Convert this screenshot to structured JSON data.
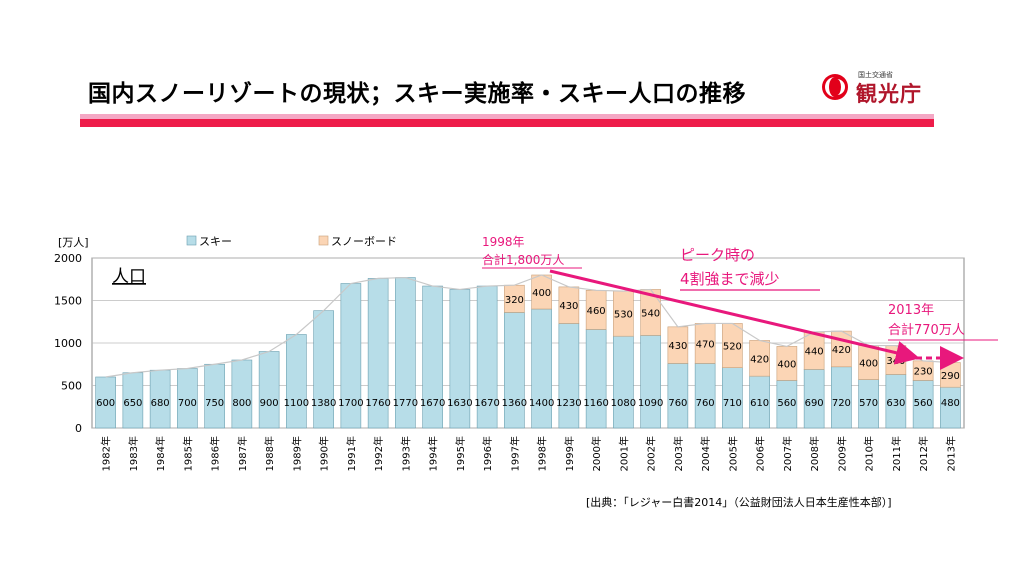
{
  "page": {
    "title": "国内スノーリゾートの現状；スキー実施率・スキー人口の推移",
    "agency_small": "国土交通省",
    "agency_name": "観光庁",
    "source": "[出典：「レジャー白書2014」（公益財団法人日本生産性本部）]"
  },
  "colors": {
    "ski": "#b7dde8",
    "snowboard": "#fbd5b5",
    "annotation": "#e8187c",
    "line": "#c8c8c8",
    "band_pink": "#f4a7c4",
    "band_red": "#ee1c4a"
  },
  "chart_data": {
    "type": "bar",
    "stacked": true,
    "inner_title": "人口",
    "ylabel": "[万人]",
    "ylim": [
      0,
      2000
    ],
    "yticks": [
      0,
      500,
      1000,
      1500,
      2000
    ],
    "legend": [
      "スキー",
      "スノーボード"
    ],
    "categories": [
      "1982年",
      "1983年",
      "1984年",
      "1985年",
      "1986年",
      "1987年",
      "1988年",
      "1989年",
      "1990年",
      "1991年",
      "1992年",
      "1993年",
      "1994年",
      "1995年",
      "1996年",
      "1997年",
      "1998年",
      "1999年",
      "2000年",
      "2001年",
      "2002年",
      "2003年",
      "2004年",
      "2005年",
      "2006年",
      "2007年",
      "2008年",
      "2009年",
      "2010年",
      "2011年",
      "2012年",
      "2013年"
    ],
    "series": [
      {
        "name": "スキー",
        "values": [
          600,
          650,
          680,
          700,
          750,
          800,
          900,
          1100,
          1380,
          1700,
          1760,
          1770,
          1670,
          1630,
          1670,
          1360,
          1400,
          1230,
          1160,
          1080,
          1090,
          760,
          760,
          710,
          610,
          560,
          690,
          720,
          570,
          630,
          560,
          480
        ]
      },
      {
        "name": "スノーボード",
        "values": [
          null,
          null,
          null,
          null,
          null,
          null,
          null,
          null,
          null,
          null,
          null,
          null,
          null,
          null,
          null,
          320,
          400,
          430,
          460,
          530,
          540,
          430,
          470,
          520,
          420,
          400,
          440,
          420,
          400,
          340,
          230,
          290
        ]
      }
    ],
    "annotations": [
      {
        "line1": "1998年",
        "line2": "合計1,800万人"
      },
      {
        "line1": "ピーク時の",
        "line2": "4割強まで減少"
      },
      {
        "line1": "2013年",
        "line2": "合計770万人"
      }
    ]
  }
}
